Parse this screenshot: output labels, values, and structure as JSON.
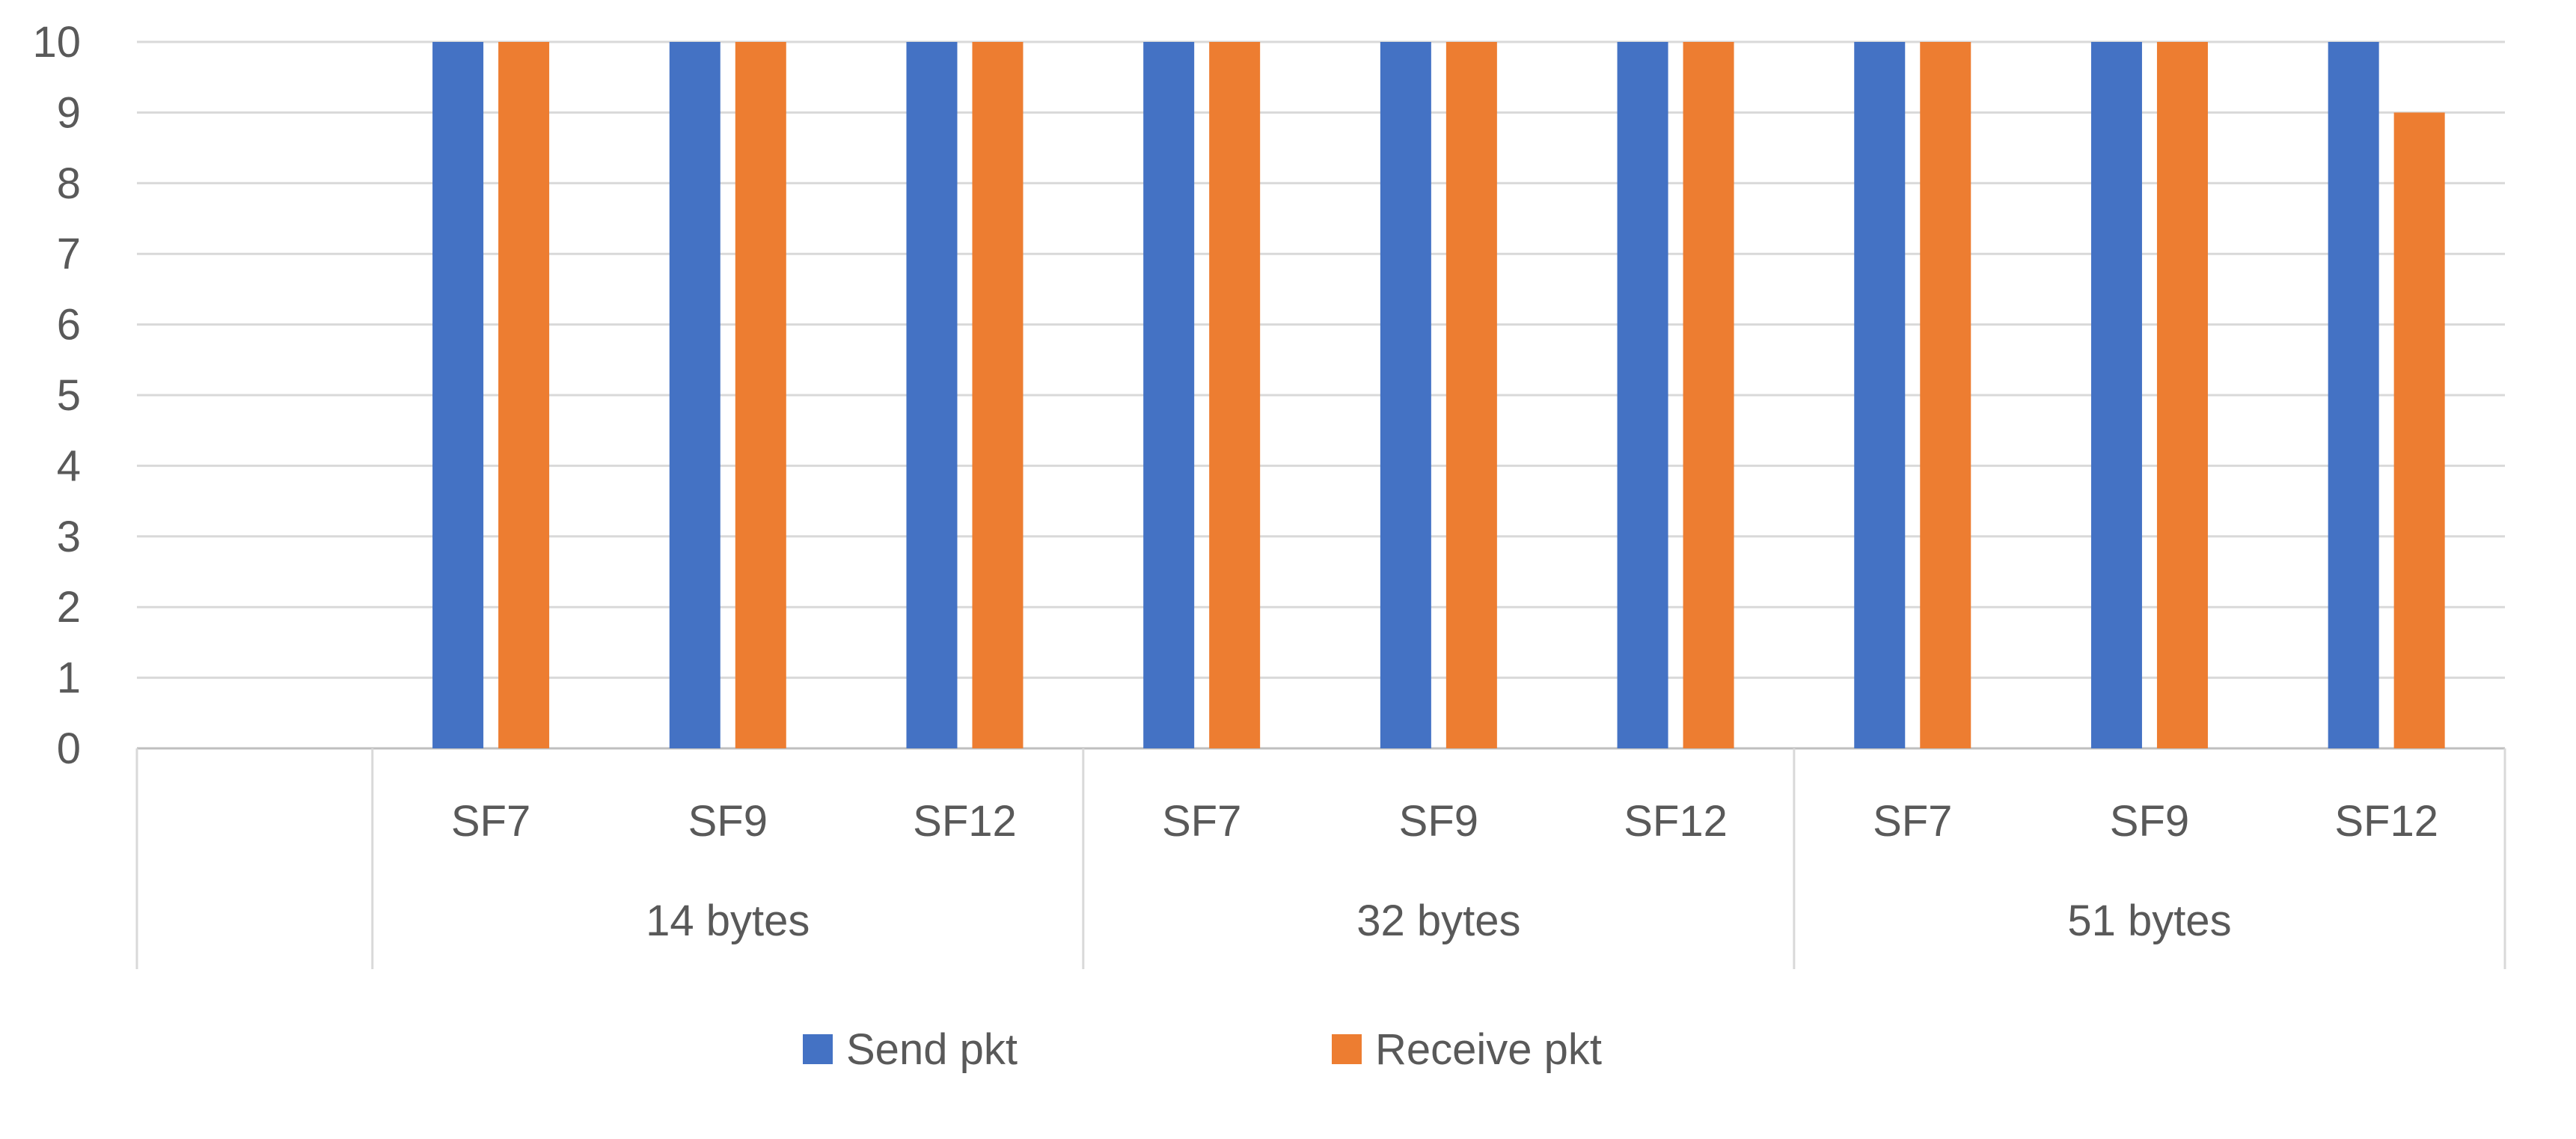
{
  "chart_data": {
    "type": "bar",
    "title": "",
    "xlabel": "",
    "ylabel": "",
    "ylim": [
      0,
      10
    ],
    "yticks": [
      0,
      1,
      2,
      3,
      4,
      5,
      6,
      7,
      8,
      9,
      10
    ],
    "grid": true,
    "legend_position": "bottom",
    "groups": [
      {
        "label": "",
        "categories": []
      },
      {
        "label": "14 bytes",
        "categories": [
          "SF7",
          "SF9",
          "SF12"
        ]
      },
      {
        "label": "32 bytes",
        "categories": [
          "SF7",
          "SF9",
          "SF12"
        ]
      },
      {
        "label": "51 bytes",
        "categories": [
          "SF7",
          "SF9",
          "SF12"
        ]
      }
    ],
    "series": [
      {
        "name": "Send pkt",
        "color": "#4472C4",
        "values": [
          10,
          10,
          10,
          10,
          10,
          10,
          10,
          10,
          10
        ]
      },
      {
        "name": "Receive pkt",
        "color": "#ED7D31",
        "values": [
          10,
          10,
          10,
          10,
          10,
          10,
          10,
          10,
          9
        ]
      }
    ]
  }
}
